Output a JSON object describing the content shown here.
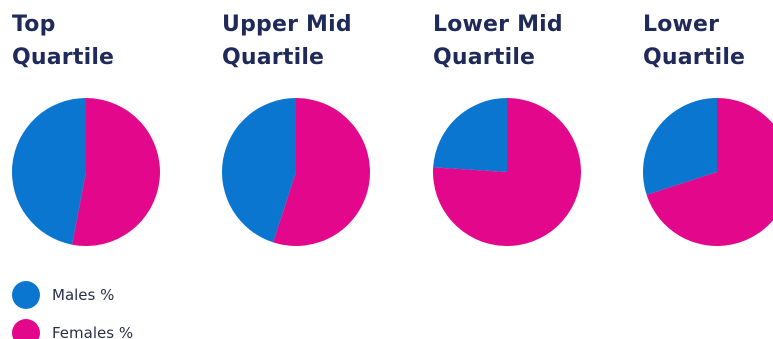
{
  "colors": {
    "males": "#0a76cf",
    "females": "#e2078b",
    "title": "#1f2a5a"
  },
  "chart_data": [
    {
      "type": "pie",
      "title_lines": [
        "Top",
        "Quartile"
      ],
      "slices": [
        {
          "label": "Males %",
          "value": 47
        },
        {
          "label": "Females %",
          "value": 53
        }
      ]
    },
    {
      "type": "pie",
      "title_lines": [
        "Upper Mid",
        "Quartile"
      ],
      "slices": [
        {
          "label": "Males %",
          "value": 45
        },
        {
          "label": "Females %",
          "value": 55
        }
      ]
    },
    {
      "type": "pie",
      "title_lines": [
        "Lower Mid",
        "Quartile"
      ],
      "slices": [
        {
          "label": "Males %",
          "value": 24
        },
        {
          "label": "Females %",
          "value": 76
        }
      ]
    },
    {
      "type": "pie",
      "title_lines": [
        "Lower",
        "Quartile"
      ],
      "slices": [
        {
          "label": "Males %",
          "value": 30
        },
        {
          "label": "Females %",
          "value": 70
        }
      ]
    }
  ],
  "legend": {
    "placement": "bottom-left",
    "items": [
      {
        "label": "Males %",
        "color_key": "males"
      },
      {
        "label": "Females %",
        "color_key": "females"
      }
    ]
  }
}
